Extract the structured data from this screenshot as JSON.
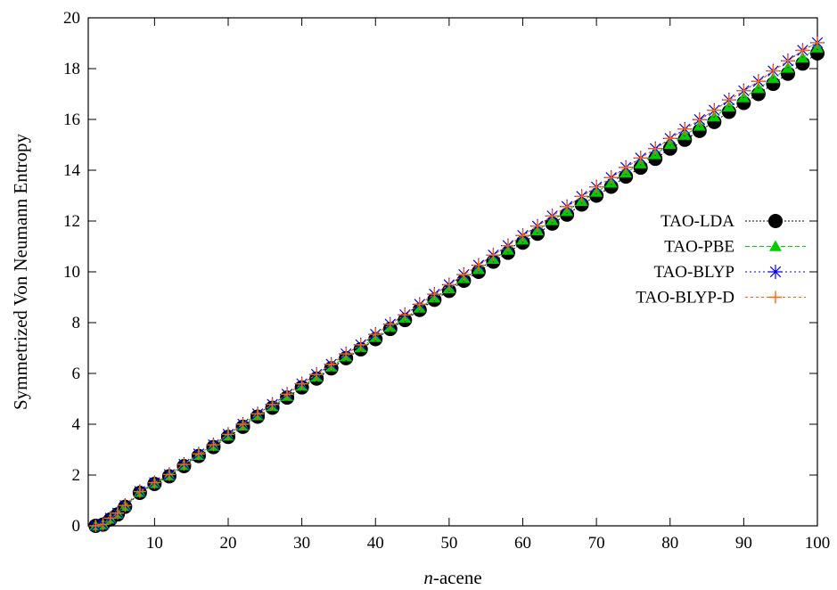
{
  "chart_data": {
    "type": "line",
    "xlabel_prefix": "n",
    "xlabel_suffix": "-acene",
    "ylabel": "Symmetrized Von Neumann Entropy",
    "xlim": [
      1,
      100
    ],
    "ylim": [
      0,
      20
    ],
    "xticks": [
      "10",
      "20",
      "30",
      "40",
      "50",
      "60",
      "70",
      "80",
      "90",
      "100"
    ],
    "yticks": [
      "0",
      "2",
      "4",
      "6",
      "8",
      "10",
      "12",
      "14",
      "16",
      "18",
      "20"
    ],
    "grid": false,
    "legend_position": "right",
    "x": [
      2,
      3,
      4,
      5,
      6,
      8,
      10,
      12,
      14,
      16,
      18,
      20,
      22,
      24,
      26,
      28,
      30,
      32,
      34,
      36,
      38,
      40,
      42,
      44,
      46,
      48,
      50,
      52,
      54,
      56,
      58,
      60,
      62,
      64,
      66,
      68,
      70,
      72,
      74,
      76,
      78,
      80,
      82,
      84,
      86,
      88,
      90,
      92,
      94,
      96,
      98,
      100
    ],
    "series": [
      {
        "name": "TAO-LDA",
        "color": "#000000",
        "marker": "circle",
        "values": [
          0.0,
          0.05,
          0.25,
          0.45,
          0.75,
          1.3,
          1.65,
          1.95,
          2.35,
          2.75,
          3.1,
          3.5,
          3.9,
          4.3,
          4.65,
          5.05,
          5.45,
          5.8,
          6.2,
          6.6,
          6.95,
          7.35,
          7.75,
          8.1,
          8.5,
          8.9,
          9.25,
          9.65,
          10.0,
          10.4,
          10.75,
          11.15,
          11.5,
          11.9,
          12.25,
          12.65,
          13.0,
          13.35,
          13.75,
          14.1,
          14.45,
          14.85,
          15.2,
          15.55,
          15.9,
          16.3,
          16.65,
          17.0,
          17.4,
          17.8,
          18.2,
          18.6
        ]
      },
      {
        "name": "TAO-PBE",
        "color": "#00cc00",
        "marker": "triangle",
        "values": [
          0.0,
          0.05,
          0.27,
          0.47,
          0.77,
          1.32,
          1.67,
          1.98,
          2.38,
          2.78,
          3.14,
          3.54,
          3.94,
          4.34,
          4.7,
          5.1,
          5.5,
          5.86,
          6.26,
          6.66,
          7.02,
          7.42,
          7.82,
          8.18,
          8.58,
          8.98,
          9.34,
          9.74,
          10.1,
          10.5,
          10.86,
          11.26,
          11.62,
          12.02,
          12.38,
          12.78,
          13.14,
          13.5,
          13.9,
          14.26,
          14.62,
          15.02,
          15.38,
          15.74,
          16.1,
          16.5,
          16.86,
          17.22,
          17.62,
          18.02,
          18.42,
          18.82
        ]
      },
      {
        "name": "TAO-BLYP",
        "color": "#0000ff",
        "marker": "asterisk",
        "values": [
          0.0,
          0.06,
          0.3,
          0.5,
          0.8,
          1.35,
          1.7,
          2.02,
          2.42,
          2.83,
          3.19,
          3.6,
          4.0,
          4.41,
          4.78,
          5.18,
          5.59,
          5.96,
          6.36,
          6.77,
          7.13,
          7.54,
          7.94,
          8.31,
          8.72,
          9.12,
          9.49,
          9.89,
          10.26,
          10.66,
          11.03,
          11.43,
          11.8,
          12.2,
          12.57,
          12.97,
          13.34,
          13.71,
          14.11,
          14.48,
          14.85,
          15.25,
          15.62,
          15.99,
          16.36,
          16.77,
          17.13,
          17.5,
          17.91,
          18.31,
          18.72,
          19.02
        ]
      },
      {
        "name": "TAO-BLYP-D",
        "color": "#ff6600",
        "marker": "plus",
        "values": [
          0.0,
          0.06,
          0.3,
          0.5,
          0.8,
          1.35,
          1.7,
          2.02,
          2.42,
          2.83,
          3.19,
          3.6,
          4.0,
          4.41,
          4.78,
          5.18,
          5.59,
          5.96,
          6.36,
          6.77,
          7.13,
          7.54,
          7.94,
          8.31,
          8.72,
          9.12,
          9.49,
          9.89,
          10.26,
          10.66,
          11.03,
          11.43,
          11.8,
          12.2,
          12.57,
          12.97,
          13.34,
          13.71,
          14.11,
          14.48,
          14.85,
          15.25,
          15.62,
          15.99,
          16.36,
          16.77,
          17.13,
          17.5,
          17.91,
          18.31,
          18.72,
          19.02
        ]
      }
    ]
  }
}
